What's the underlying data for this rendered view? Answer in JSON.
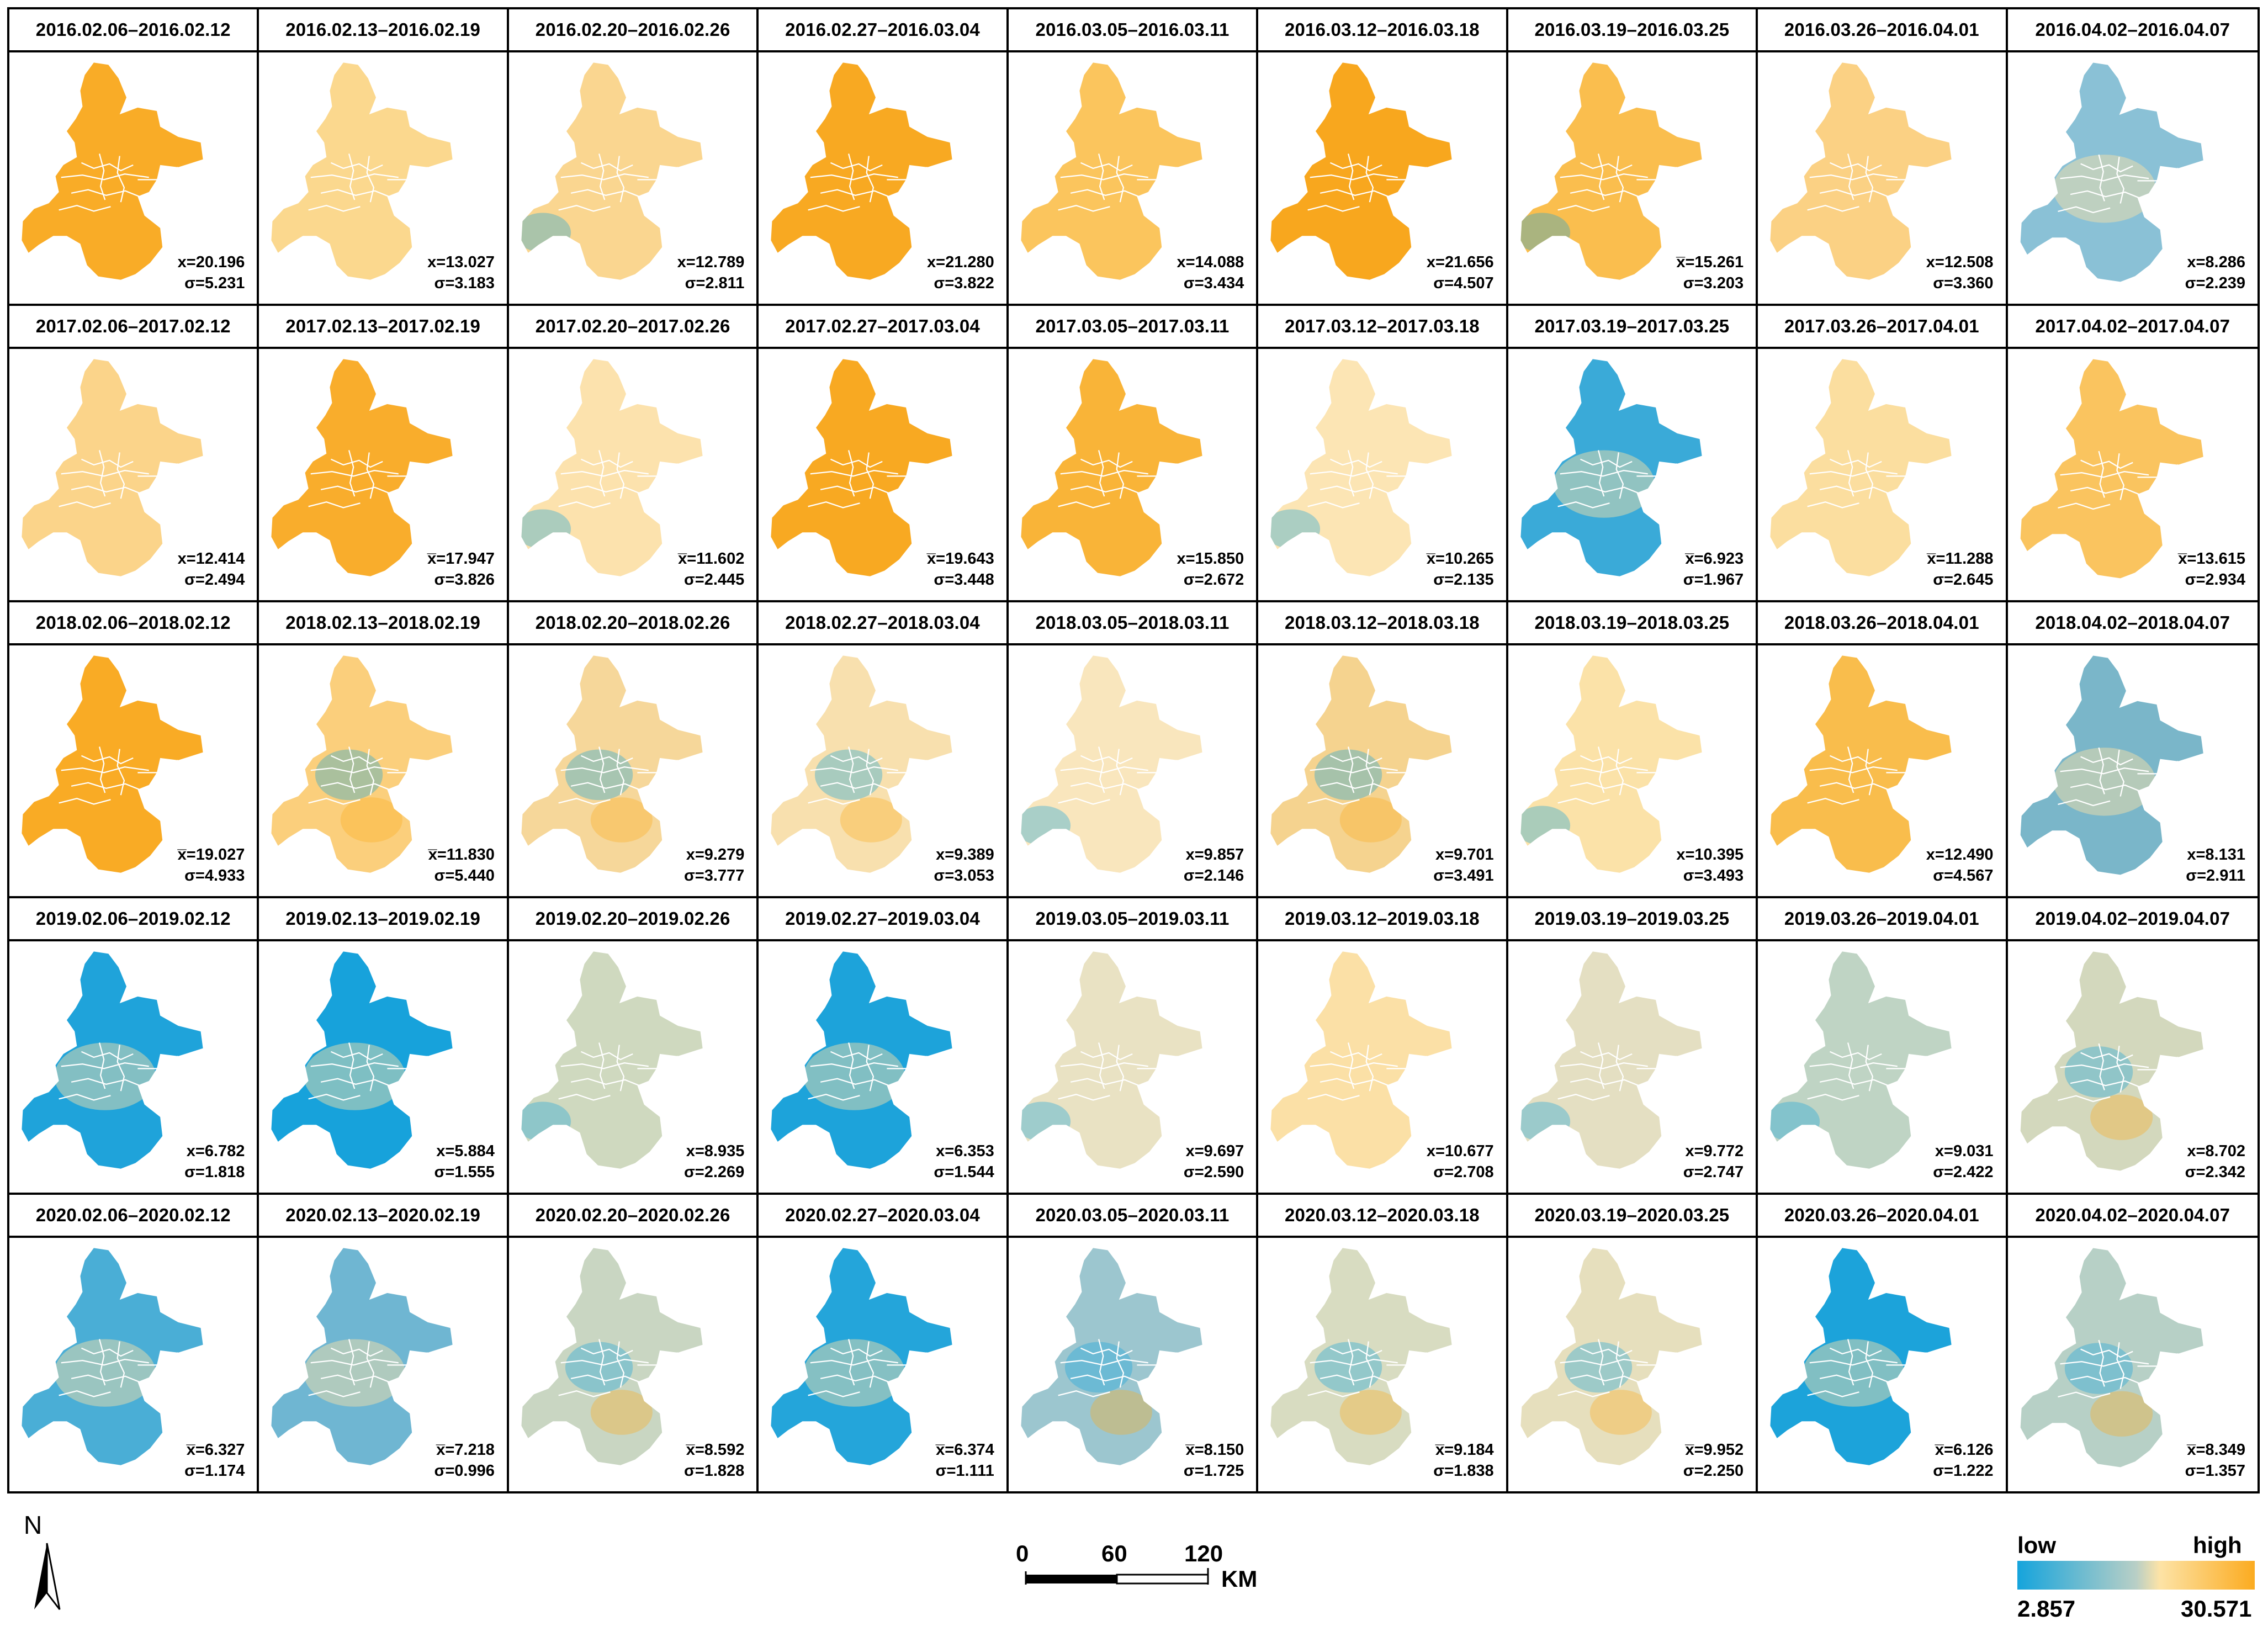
{
  "panels": [
    {
      "title": "2016.02.06–2016.02.12",
      "mean": "x=20.196",
      "sd": "σ=5.231",
      "tone": "#f9ac27",
      "variant": 0
    },
    {
      "title": "2016.02.13–2016.02.19",
      "mean": "x=13.027",
      "sd": "σ=3.183",
      "tone": "#fbd88e",
      "variant": 1
    },
    {
      "title": "2016.02.20–2016.02.26",
      "mean": "x=12.789",
      "sd": "σ=2.811",
      "tone": "#fad690",
      "variant": 2
    },
    {
      "title": "2016.02.27–2016.03.04",
      "mean": "x=21.280",
      "sd": "σ=3.822",
      "tone": "#f8a922",
      "variant": 0
    },
    {
      "title": "2016.03.05–2016.03.11",
      "mean": "x=14.088",
      "sd": "σ=3.434",
      "tone": "#fbc55d",
      "variant": 1
    },
    {
      "title": "2016.03.12–2016.03.18",
      "mean": "x=21.656",
      "sd": "σ=4.507",
      "tone": "#f8a71e",
      "variant": 0
    },
    {
      "title": "2016.03.19–2016.03.25",
      "mean": "x̅=15.261",
      "sd": "σ=3.203",
      "tone": "#fabe4e",
      "variant": 2
    },
    {
      "title": "2016.03.26–2016.04.01",
      "mean": "x=12.508",
      "sd": "σ=3.360",
      "tone": "#fbd184",
      "variant": 1
    },
    {
      "title": "2016.04.02–2016.04.07",
      "mean": "x=8.286",
      "sd": "σ=2.239",
      "tone": "#8ac1d6",
      "variant": 3
    },
    {
      "title": "2017.02.06–2017.02.12",
      "mean": "x=12.414",
      "sd": "σ=2.494",
      "tone": "#fbd48a",
      "variant": 1
    },
    {
      "title": "2017.02.13–2017.02.19",
      "mean": "x̅=17.947",
      "sd": "σ=3.826",
      "tone": "#f9ad2c",
      "variant": 0
    },
    {
      "title": "2017.02.20–2017.02.26",
      "mean": "x̅=11.602",
      "sd": "σ=2.445",
      "tone": "#fce2ad",
      "variant": 2
    },
    {
      "title": "2017.02.27–2017.03.04",
      "mean": "x̅=19.643",
      "sd": "σ=3.448",
      "tone": "#f8a922",
      "variant": 0
    },
    {
      "title": "2017.03.05–2017.03.11",
      "mean": "x=15.850",
      "sd": "σ=2.672",
      "tone": "#f9b438",
      "variant": 1
    },
    {
      "title": "2017.03.12–2017.03.18",
      "mean": "x̅=10.265",
      "sd": "σ=2.135",
      "tone": "#fce5b4",
      "variant": 2
    },
    {
      "title": "2017.03.19–2017.03.25",
      "mean": "x̅=6.923",
      "sd": "σ=1.967",
      "tone": "#3aaad8",
      "variant": 3
    },
    {
      "title": "2017.03.26–2017.04.01",
      "mean": "x̅=11.288",
      "sd": "σ=2.645",
      "tone": "#fbde9f",
      "variant": 1
    },
    {
      "title": "2017.04.02–2017.04.07",
      "mean": "x̅=13.615",
      "sd": "σ=2.934",
      "tone": "#fac45f",
      "variant": 0
    },
    {
      "title": "2018.02.06–2018.02.12",
      "mean": "x̅=19.027",
      "sd": "σ=4.933",
      "tone": "#f9ab25",
      "variant": 0
    },
    {
      "title": "2018.02.13–2018.02.19",
      "mean": "x̅=11.830",
      "sd": "σ=5.440",
      "tone": "#fbcf7c",
      "variant": 4
    },
    {
      "title": "2018.02.20–2018.02.26",
      "mean": "x=9.279",
      "sd": "σ=3.777",
      "tone": "#f6d79a",
      "variant": 4
    },
    {
      "title": "2018.02.27–2018.03.04",
      "mean": "x=9.389",
      "sd": "σ=3.053",
      "tone": "#f8e0ae",
      "variant": 4
    },
    {
      "title": "2018.03.05–2018.03.11",
      "mean": "x=9.857",
      "sd": "σ=2.146",
      "tone": "#f9e6bd",
      "variant": 2
    },
    {
      "title": "2018.03.12–2018.03.18",
      "mean": "x=9.701",
      "sd": "σ=3.491",
      "tone": "#f5d38f",
      "variant": 4
    },
    {
      "title": "2018.03.19–2018.03.25",
      "mean": "x=10.395",
      "sd": "σ=3.493",
      "tone": "#fbe2a8",
      "variant": 2
    },
    {
      "title": "2018.03.26–2018.04.01",
      "mean": "x=12.490",
      "sd": "σ=4.567",
      "tone": "#f9bd4c",
      "variant": 0
    },
    {
      "title": "2018.04.02–2018.04.07",
      "mean": "x=8.131",
      "sd": "σ=2.911",
      "tone": "#7ab6c9",
      "variant": 3
    },
    {
      "title": "2019.02.06–2019.02.12",
      "mean": "x=6.782",
      "sd": "σ=1.818",
      "tone": "#1fa3da",
      "variant": 3
    },
    {
      "title": "2019.02.13–2019.02.19",
      "mean": "x=5.884",
      "sd": "σ=1.555",
      "tone": "#17a2db",
      "variant": 3
    },
    {
      "title": "2019.02.20–2019.02.26",
      "mean": "x=8.935",
      "sd": "σ=2.269",
      "tone": "#cfd9bf",
      "variant": 2
    },
    {
      "title": "2019.02.27–2019.03.04",
      "mean": "x=6.353",
      "sd": "σ=1.544",
      "tone": "#1da3da",
      "variant": 3
    },
    {
      "title": "2019.03.05–2019.03.11",
      "mean": "x=9.697",
      "sd": "σ=2.590",
      "tone": "#e9e2c3",
      "variant": 2
    },
    {
      "title": "2019.03.12–2019.03.18",
      "mean": "x=10.677",
      "sd": "σ=2.708",
      "tone": "#fbe0a6",
      "variant": 1
    },
    {
      "title": "2019.03.19–2019.03.25",
      "mean": "x=9.772",
      "sd": "σ=2.747",
      "tone": "#e4dfc2",
      "variant": 2
    },
    {
      "title": "2019.03.26–2019.04.01",
      "mean": "x=9.031",
      "sd": "σ=2.422",
      "tone": "#bfd4c4",
      "variant": 2
    },
    {
      "title": "2019.04.02–2019.04.07",
      "mean": "x=8.702",
      "sd": "σ=2.342",
      "tone": "#d3d8bd",
      "variant": 4
    },
    {
      "title": "2020.02.06–2020.02.12",
      "mean": "x̅=6.327",
      "sd": "σ=1.174",
      "tone": "#4aaed6",
      "variant": 3
    },
    {
      "title": "2020.02.13–2020.02.19",
      "mean": "x̅=7.218",
      "sd": "σ=0.996",
      "tone": "#6fb6d2",
      "variant": 3
    },
    {
      "title": "2020.02.20–2020.02.26",
      "mean": "x̅=8.592",
      "sd": "σ=1.828",
      "tone": "#c9d6c2",
      "variant": 4
    },
    {
      "title": "2020.02.27–2020.03.04",
      "mean": "x̅=6.374",
      "sd": "σ=1.111",
      "tone": "#24a5da",
      "variant": 3
    },
    {
      "title": "2020.03.05–2020.03.11",
      "mean": "x̅=8.150",
      "sd": "σ=1.725",
      "tone": "#9cc6cf",
      "variant": 4
    },
    {
      "title": "2020.03.12–2020.03.18",
      "mean": "x̅=9.184",
      "sd": "σ=1.838",
      "tone": "#d8dcc1",
      "variant": 4
    },
    {
      "title": "2020.03.19–2020.03.25",
      "mean": "x̅=9.952",
      "sd": "σ=2.250",
      "tone": "#e6dfbd",
      "variant": 4
    },
    {
      "title": "2020.03.26–2020.04.01",
      "mean": "x̅=6.126",
      "sd": "σ=1.222",
      "tone": "#1ca3da",
      "variant": 3
    },
    {
      "title": "2020.04.02–2020.04.07",
      "mean": "x̅=8.349",
      "sd": "σ=1.357",
      "tone": "#b7d0c6",
      "variant": 4
    }
  ],
  "north_arrow": {
    "label": "N"
  },
  "scale_bar": {
    "tick_0": "0",
    "tick_60": "60",
    "tick_120": "120",
    "unit": "KM"
  },
  "legend": {
    "low_label": "low",
    "high_label": "high",
    "min_value": "2.857",
    "max_value": "30.571",
    "colors": {
      "low": "#15a4dc",
      "mid": "#fde3a6",
      "high": "#fbab20"
    }
  }
}
